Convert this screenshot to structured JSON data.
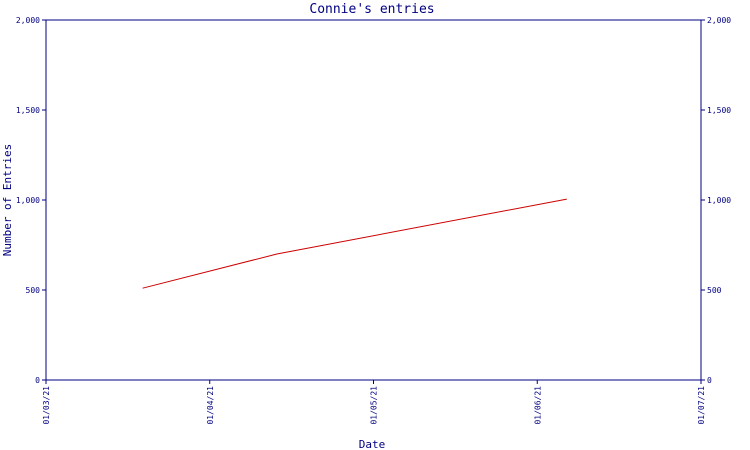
{
  "chart_data": {
    "type": "line",
    "title": "Connie's entries",
    "xlabel": "Date",
    "ylabel": "Number of Entries",
    "x_ticks": [
      "01/03/21",
      "01/04/21",
      "01/05/21",
      "01/06/21",
      "01/07/21"
    ],
    "y_ticks": [
      "0",
      "500",
      "1,000",
      "1,500",
      "2,000"
    ],
    "ylim": [
      0,
      2000
    ],
    "xlim": [
      "2021-03-01",
      "2021-07-01"
    ],
    "grid": false,
    "series": [
      {
        "points": [
          {
            "x": "2021-03-19",
            "y": 510
          },
          {
            "x": "2021-04-13",
            "y": 700
          },
          {
            "x": "2021-06-06",
            "y": 1005
          }
        ]
      }
    ],
    "colors": {
      "axes": "#000080",
      "line": "#cc0000"
    }
  }
}
